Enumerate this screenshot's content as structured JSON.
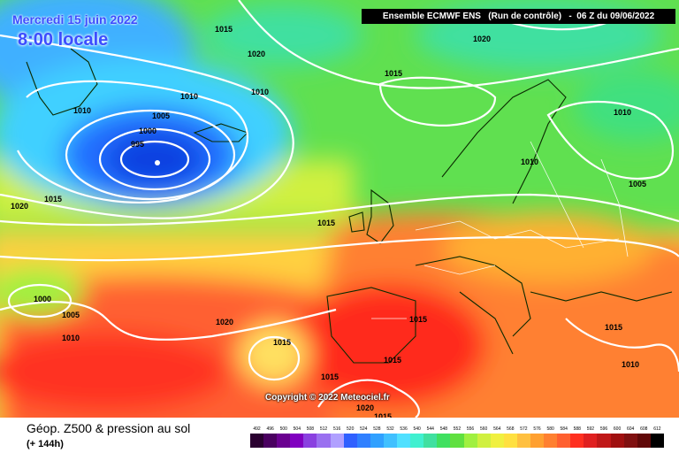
{
  "header": {
    "date": "Mercredi 15 juin 2022",
    "time": "8:00 locale",
    "model_info": "Ensemble ECMWF ENS   (Run de contrôle)   -  06 Z du 09/06/2022"
  },
  "footer": {
    "title": "Géop. Z500 & pression au sol",
    "subtitle": "(+ 144h)"
  },
  "copyright": "Copyright © 2022 Meteociel.fr",
  "isobar_labels": [
    "1015",
    "1020",
    "1010",
    "1015",
    "1010",
    "1010",
    "1005",
    "1000",
    "995",
    "1015",
    "1020",
    "1015",
    "1010",
    "1010",
    "1005",
    "1020",
    "1000",
    "1005",
    "1010",
    "1020",
    "1015",
    "1015",
    "1015",
    "1015",
    "1020",
    "1015",
    "1015",
    "1010"
  ],
  "legend": {
    "values": [
      "492",
      "496",
      "500",
      "504",
      "508",
      "512",
      "516",
      "520",
      "524",
      "528",
      "532",
      "536",
      "540",
      "544",
      "548",
      "552",
      "556",
      "560",
      "564",
      "568",
      "572",
      "576",
      "580",
      "584",
      "588",
      "592",
      "596",
      "600",
      "604",
      "608",
      "612"
    ],
    "colors": [
      "#2a0030",
      "#4a0060",
      "#6a0090",
      "#8000c0",
      "#8a40e0",
      "#9a70f0",
      "#b0a0ff",
      "#3060ff",
      "#3080ff",
      "#30a0ff",
      "#40c0ff",
      "#50e0ff",
      "#40f0d0",
      "#40e0a0",
      "#40e060",
      "#60e040",
      "#a0f040",
      "#d0f040",
      "#f0f040",
      "#ffe040",
      "#ffc040",
      "#ffa030",
      "#ff8030",
      "#ff6030",
      "#ff3020",
      "#e02020",
      "#c01818",
      "#a01010",
      "#801010",
      "#600808",
      "#000000"
    ]
  }
}
